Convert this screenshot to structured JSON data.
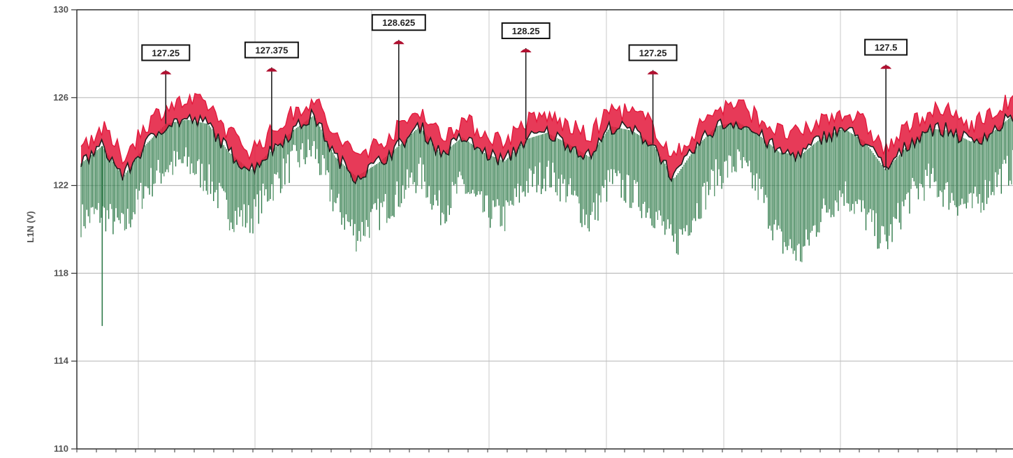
{
  "chart_data": {
    "type": "line",
    "title": "",
    "xlabel": "",
    "ylabel": "L1N (V)",
    "ylim": [
      110,
      130
    ],
    "yticks": [
      110,
      114,
      118,
      122,
      126,
      130
    ],
    "grid": true,
    "colors": {
      "max": "#e3173b",
      "avg": "#1f1f1f",
      "min": "#2f7a4a",
      "min_light": "#5f9a72",
      "marker": "#b01030"
    },
    "series": [
      {
        "role": "max",
        "values": [
          123.8,
          124.6,
          123.3,
          124.7,
          125.6,
          125.8,
          125.7,
          124.4,
          123.6,
          124.4,
          125.3,
          126.0,
          124.2,
          123.4,
          123.9,
          124.6,
          125.5,
          124.2,
          125.0,
          124.4,
          124.0,
          124.9,
          125.2,
          124.7,
          124.2,
          125.5,
          125.3,
          124.8,
          123.2,
          124.5,
          125.5,
          125.7,
          125.1,
          124.4,
          124.3,
          125.0,
          125.4,
          124.8,
          123.6,
          124.6,
          125.4,
          125.3,
          124.8,
          125.2,
          126.0
        ]
      },
      {
        "role": "avg",
        "values": [
          123.0,
          123.8,
          122.4,
          123.8,
          124.8,
          125.0,
          124.8,
          123.5,
          122.7,
          123.6,
          124.5,
          125.2,
          123.3,
          122.4,
          123.0,
          123.8,
          124.7,
          123.4,
          124.2,
          123.5,
          123.1,
          124.1,
          124.4,
          123.9,
          123.3,
          124.7,
          124.5,
          123.9,
          122.3,
          123.7,
          124.7,
          124.9,
          124.3,
          123.5,
          123.4,
          124.2,
          124.6,
          124.0,
          122.7,
          123.8,
          124.6,
          124.5,
          124.0,
          124.4,
          125.2
        ]
      },
      {
        "role": "min",
        "values": [
          120.2,
          120.5,
          119.8,
          121.6,
          122.6,
          122.8,
          122.0,
          120.5,
          120.2,
          121.7,
          122.8,
          123.4,
          120.9,
          119.5,
          120.4,
          121.3,
          122.3,
          120.6,
          121.8,
          120.6,
          120.3,
          121.8,
          122.3,
          121.5,
          120.1,
          122.0,
          121.4,
          120.6,
          119.0,
          120.6,
          122.2,
          122.8,
          121.6,
          119.2,
          118.6,
          120.5,
          121.5,
          120.4,
          119.1,
          121.1,
          122.0,
          121.3,
          120.7,
          121.8,
          122.6
        ]
      }
    ],
    "outliers": [
      {
        "index": 1,
        "value": 115.6
      }
    ],
    "peaks": [
      {
        "index": 4,
        "value": 127.25,
        "label": "127.25"
      },
      {
        "index": 9,
        "value": 127.375,
        "label": "127.375"
      },
      {
        "index": 15,
        "value": 128.625,
        "label": "128.625"
      },
      {
        "index": 21,
        "value": 128.25,
        "label": "128.25"
      },
      {
        "index": 27,
        "value": 127.25,
        "label": "127.25"
      },
      {
        "index": 38,
        "value": 127.5,
        "label": "127.5"
      }
    ]
  }
}
